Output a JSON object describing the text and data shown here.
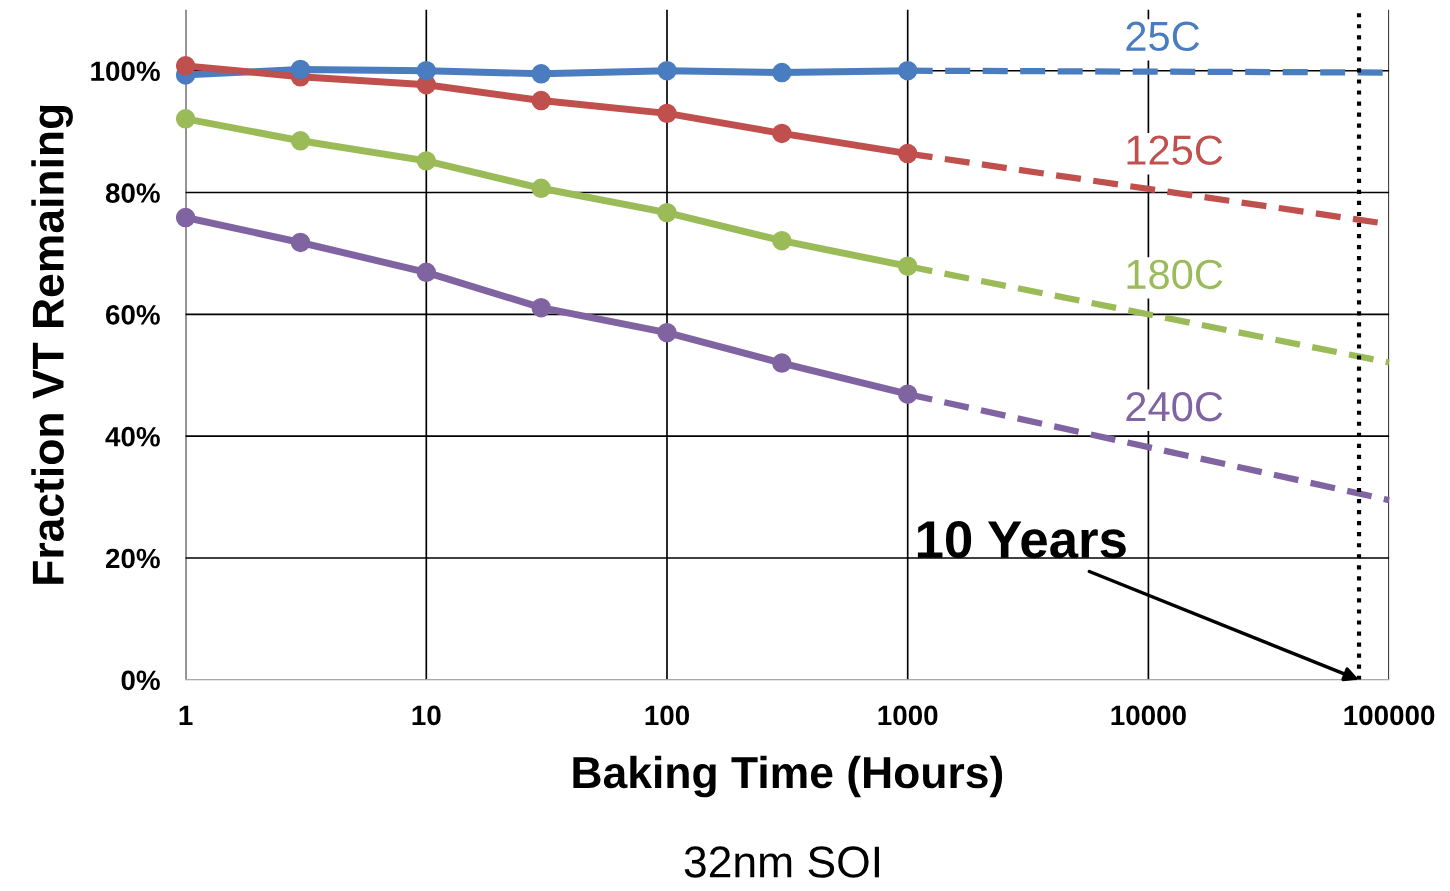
{
  "chart_data": {
    "type": "line",
    "xlabel": "Baking Time (Hours)",
    "ylabel": "Fraction VT Remaining",
    "log": "x",
    "xlim": [
      1,
      100000
    ],
    "xticks": [
      1,
      10,
      100,
      1000,
      10000,
      100000
    ],
    "ylim": [
      0,
      110
    ],
    "yticks": [
      {
        "value": 0,
        "label": "0%"
      },
      {
        "value": 20,
        "label": "20%"
      },
      {
        "value": 40,
        "label": "40%"
      },
      {
        "value": 60,
        "label": "60%"
      },
      {
        "value": 80,
        "label": "80%"
      },
      {
        "value": 100,
        "label": "100%"
      }
    ],
    "grid": true,
    "marker": "circle",
    "line_style": "solid",
    "legend": false,
    "series": [
      {
        "color": "#4a7cc0",
        "x": [
          1,
          3,
          10,
          30,
          100,
          300,
          1000
        ],
        "values": [
          99.3,
          100.2,
          100,
          99.5,
          100,
          99.7,
          100
        ]
      },
      {
        "color": "#c0504d",
        "x": [
          1,
          3,
          10,
          30,
          100,
          300,
          1000
        ],
        "values": [
          100.8,
          99,
          97.7,
          95.1,
          93,
          89.7,
          86.4
        ]
      },
      {
        "color": "#9bbb59",
        "x": [
          1,
          3,
          10,
          30,
          100,
          300,
          1000
        ],
        "values": [
          92.1,
          88.5,
          85.2,
          80.7,
          76.7,
          72.1,
          67.9
        ]
      },
      {
        "color": "#8064a2",
        "x": [
          1,
          3,
          10,
          30,
          100,
          300,
          1000
        ],
        "values": [
          75.9,
          71.8,
          66.9,
          61.1,
          57,
          52,
          46.9
        ]
      },
      {
        "name": "25C",
        "color": "#4a7cc0",
        "x": [
          1000,
          100000
        ],
        "values": [
          100,
          99.7
        ],
        "marker": "none",
        "line_style": "dashed"
      },
      {
        "name": "125C",
        "color": "#c0504d",
        "x": [
          1000,
          100000
        ],
        "values": [
          86.4,
          74.8
        ],
        "marker": "none",
        "line_style": "dashed"
      },
      {
        "name": "180C",
        "color": "#9bbb59",
        "x": [
          1000,
          100000
        ],
        "values": [
          67.9,
          52.1
        ],
        "marker": "none",
        "line_style": "dashed"
      },
      {
        "name": "240C",
        "color": "#8064a2",
        "x": [
          1000,
          100000
        ],
        "values": [
          46.9,
          29.5
        ],
        "marker": "none",
        "line_style": "dashed"
      }
    ],
    "ref_lines": [
      {
        "axis": "x",
        "value": 75000,
        "color": "#000000",
        "line_style": "dotted"
      }
    ],
    "annotations": [
      {
        "text": "10 Years",
        "x": 75000,
        "y": 0
      },
      "32nm SOI"
    ]
  }
}
